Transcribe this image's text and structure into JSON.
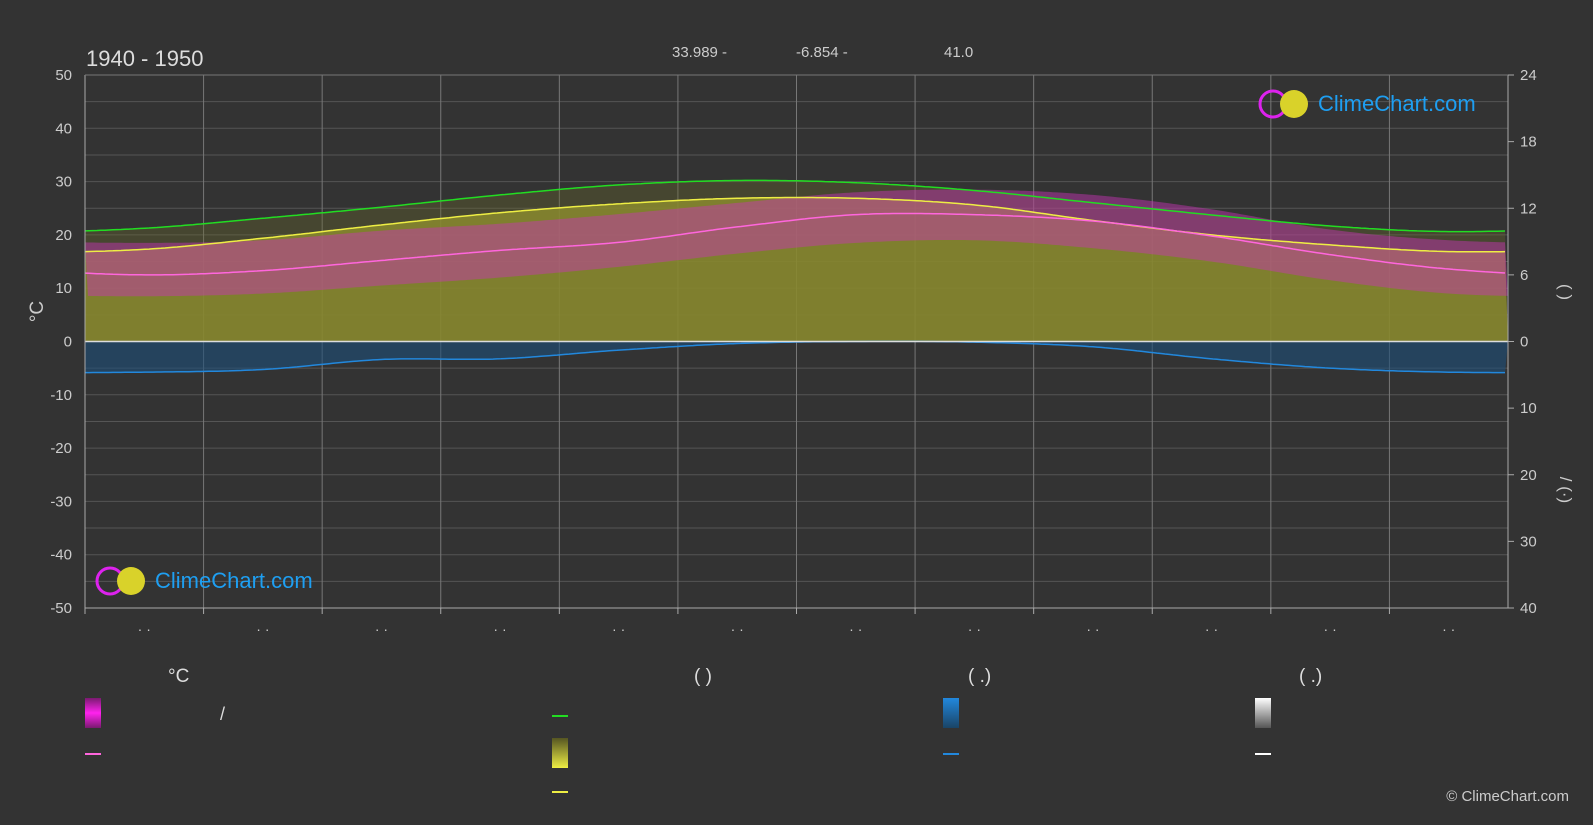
{
  "header": {
    "period": "1940 - 1950",
    "latitude": "33.989 -",
    "longitude": "-6.854 -",
    "elevation": "41.0"
  },
  "logo": {
    "text": "ClimeChart.com"
  },
  "copyright": "© ClimeChart.com",
  "legend": {
    "temperature_heading": "°C",
    "daylight_heading": "(          )",
    "rain_heading": "(   .)",
    "snow_heading": "(   .)",
    "range_label": "/"
  },
  "colors": {
    "background": "#333333",
    "grid": "#555555",
    "vgrid": "#777777",
    "daylight": "#22dd22",
    "sunshine": "#eeee44",
    "sunshine_fill": "#9a9a30",
    "avg_temp": "#ff66dd",
    "temp_range": "#cc33bb",
    "rain": "#2288dd",
    "snow": "#ffffff"
  },
  "chart_data": {
    "type": "area",
    "y_left": {
      "label": "°C",
      "range": [
        -50,
        50
      ],
      "ticks": [
        50,
        40,
        30,
        20,
        10,
        0,
        -10,
        -20,
        -30,
        -40,
        -50
      ]
    },
    "y_right_top": {
      "range": [
        0,
        24
      ],
      "ticks": [
        24,
        18,
        12,
        6,
        0
      ],
      "label": "(   )"
    },
    "y_right_bottom": {
      "range": [
        0,
        40
      ],
      "ticks": [
        0,
        10,
        20,
        30,
        40
      ],
      "label": "/  (·)"
    },
    "months": 12,
    "x_tick_labels": [
      "· ·",
      "· ·",
      "· ·",
      "· ·",
      "· ·",
      "· ·",
      "· ·",
      "· ·",
      "· ·",
      "· ·",
      "· ·",
      "· ·"
    ],
    "series": [
      {
        "key": "daylight",
        "unit": "hours",
        "values": [
          10.2,
          11.1,
          12.1,
          13.2,
          14.1,
          14.5,
          14.3,
          13.6,
          12.5,
          11.4,
          10.4,
          9.9
        ]
      },
      {
        "key": "sunshine",
        "unit": "hours",
        "values": [
          8.3,
          9.3,
          10.5,
          11.6,
          12.4,
          12.9,
          12.9,
          12.3,
          10.9,
          9.6,
          8.7,
          8.1
        ]
      },
      {
        "key": "avg_temp",
        "unit": "°C",
        "values": [
          12.5,
          13.3,
          15.2,
          17.1,
          18.6,
          21.5,
          23.8,
          23.8,
          22.6,
          19.8,
          16.3,
          13.6
        ]
      },
      {
        "key": "temp_max",
        "unit": "°C",
        "values": [
          18.5,
          19.0,
          20.8,
          22.1,
          23.9,
          26.0,
          28.0,
          28.5,
          27.5,
          24.8,
          21.0,
          19.0
        ]
      },
      {
        "key": "temp_min",
        "unit": "°C",
        "values": [
          8.5,
          9.0,
          10.5,
          12.0,
          14.0,
          16.5,
          18.5,
          19.0,
          17.5,
          15.0,
          11.5,
          9.0
        ]
      },
      {
        "key": "rain_mm",
        "unit": "mm/day",
        "values": [
          4.6,
          4.2,
          2.7,
          2.6,
          1.3,
          0.3,
          0.0,
          0.1,
          0.8,
          2.6,
          4.0,
          4.6
        ]
      }
    ]
  }
}
